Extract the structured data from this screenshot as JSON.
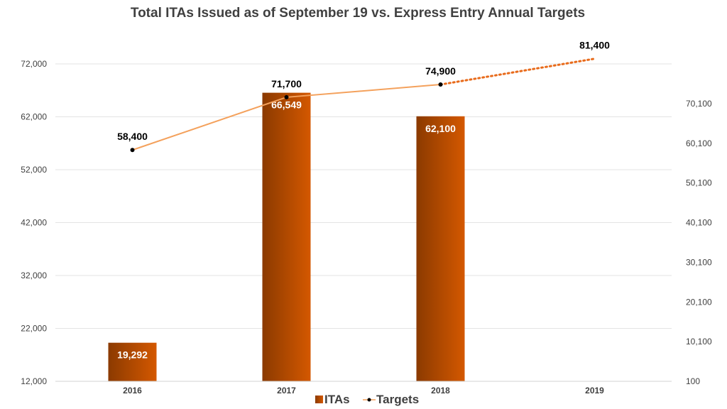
{
  "colors": {
    "bar_dark": "#8B3A00",
    "bar_light": "#D45800",
    "line": "#F4A15C",
    "line_projected": "#E86A1A",
    "marker": "#000000",
    "grid": "#E3E3E3",
    "text": "#404040"
  },
  "chart_data": {
    "type": "bar",
    "title": "Total ITAs Issued as of September 19 vs. Express Entry Annual Targets",
    "categories": [
      "2016",
      "2017",
      "2018",
      "2019"
    ],
    "series": [
      {
        "name": "ITAs",
        "type": "bar",
        "axis": "left",
        "values": [
          19292,
          66549,
          62100,
          null
        ],
        "labels": [
          "19,292",
          "66,549",
          "62,100",
          ""
        ]
      },
      {
        "name": "Targets",
        "type": "line",
        "axis": "right",
        "values": [
          58400,
          71700,
          74900,
          81400
        ],
        "labels": [
          "58,400",
          "71,700",
          "74,900",
          "81,400"
        ],
        "projected_from_index": 2
      }
    ],
    "y_left": {
      "ylim": [
        12000,
        72000
      ],
      "ticks": [
        12000,
        22000,
        32000,
        42000,
        52000,
        62000,
        72000
      ],
      "tick_labels": [
        "12,000",
        "22,000",
        "32,000",
        "42,000",
        "52,000",
        "62,000",
        "72,000"
      ]
    },
    "y_right": {
      "ylim": [
        100,
        80100
      ],
      "ticks": [
        100,
        10100,
        20100,
        30100,
        40100,
        50100,
        60100,
        70100
      ],
      "tick_labels": [
        "100",
        "10,100",
        "20,100",
        "30,100",
        "40,100",
        "50,100",
        "60,100",
        "70,100"
      ]
    },
    "grid": true,
    "legend": {
      "position": "bottom",
      "entries": [
        "ITAs",
        "Targets"
      ]
    }
  }
}
